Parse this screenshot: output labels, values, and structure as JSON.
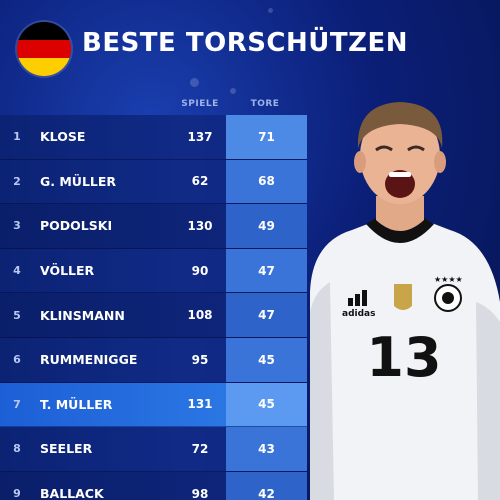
{
  "header": {
    "title": "BESTE TORSCHÜTZEN",
    "flag_colors": [
      "#000000",
      "#dd0000",
      "#ffce00"
    ]
  },
  "columns": {
    "games": "SPIELE",
    "goals": "TORE"
  },
  "rows": [
    {
      "rank": "1",
      "name": "KLOSE",
      "games": "137",
      "goals": "71"
    },
    {
      "rank": "2",
      "name": "G. MÜLLER",
      "games": "62",
      "goals": "68"
    },
    {
      "rank": "3",
      "name": "PODOLSKI",
      "games": "130",
      "goals": "49"
    },
    {
      "rank": "4",
      "name": "VÖLLER",
      "games": "90",
      "goals": "47"
    },
    {
      "rank": "5",
      "name": "KLINSMANN",
      "games": "108",
      "goals": "47"
    },
    {
      "rank": "6",
      "name": "RUMMENIGGE",
      "games": "95",
      "goals": "45"
    },
    {
      "rank": "7",
      "name": "T. MÜLLER",
      "games": "131",
      "goals": "45"
    },
    {
      "rank": "8",
      "name": "SEELER",
      "games": "72",
      "goals": "43"
    },
    {
      "rank": "9",
      "name": "BALLACK",
      "games": "98",
      "goals": "42"
    }
  ],
  "highlight_rank": "7",
  "player": {
    "shirt_number": "13",
    "brand": "adidas"
  },
  "colors": {
    "background": "#0b1f78",
    "highlight_row": "#2f7fe8",
    "goals_column": "#3a74d8"
  }
}
